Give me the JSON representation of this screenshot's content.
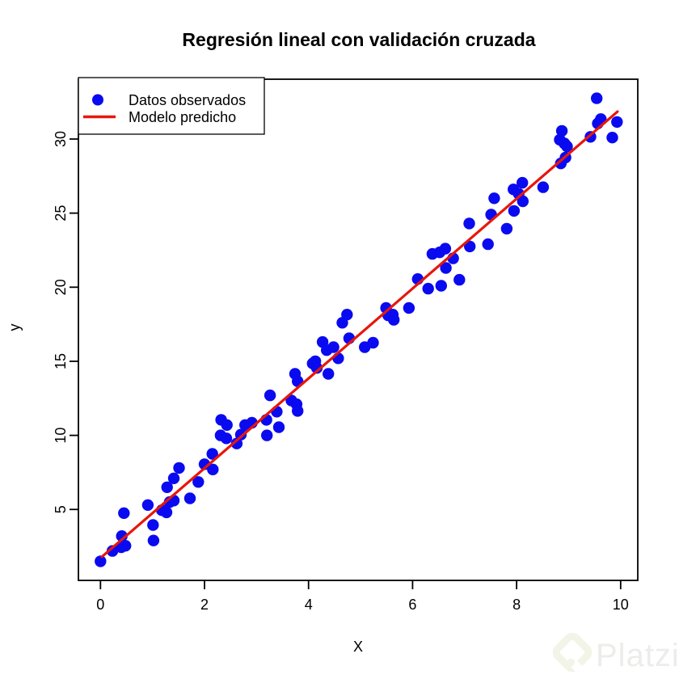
{
  "page": {
    "background": "#ffffff"
  },
  "chart_data": {
    "type": "scatter",
    "title": "Regresión lineal con validación cruzada",
    "xlabel": "X",
    "ylabel": "y",
    "x_ticks": [
      0,
      2,
      4,
      6,
      8,
      10
    ],
    "y_ticks": [
      5,
      10,
      15,
      20,
      25,
      30
    ],
    "xlim": [
      -0.4,
      10.35
    ],
    "ylim": [
      0.2,
      34.0
    ],
    "grid": false,
    "legend": {
      "position": "topleft",
      "entries": [
        {
          "label": "Datos observados",
          "marker": "filled-circle",
          "color": "#0a0af0"
        },
        {
          "label": "Modelo predicho",
          "marker": "line",
          "color": "#e8160c"
        }
      ]
    },
    "series": [
      {
        "name": "Datos observados",
        "type": "scatter",
        "color": "#0a0af0",
        "points": [
          [
            0,
            1.5
          ],
          [
            0.23,
            2.2
          ],
          [
            0.4,
            2.45
          ],
          [
            0.48,
            2.55
          ],
          [
            0.41,
            3.2
          ],
          [
            0.45,
            4.75
          ],
          [
            0.91,
            5.3
          ],
          [
            1.01,
            3.95
          ],
          [
            1.02,
            2.9
          ],
          [
            1.18,
            4.95
          ],
          [
            1.27,
            4.8
          ],
          [
            1.28,
            6.5
          ],
          [
            1.33,
            5.5
          ],
          [
            1.41,
            5.6
          ],
          [
            1.41,
            7.1
          ],
          [
            1.51,
            7.8
          ],
          [
            1.72,
            5.75
          ],
          [
            1.88,
            6.85
          ],
          [
            2,
            8.05
          ],
          [
            2.15,
            8.75
          ],
          [
            2.16,
            7.7
          ],
          [
            2.31,
            10
          ],
          [
            2.32,
            11.05
          ],
          [
            2.42,
            9.8
          ],
          [
            2.43,
            10.7
          ],
          [
            2.62,
            9.45
          ],
          [
            2.7,
            10.05
          ],
          [
            2.78,
            10.7
          ],
          [
            2.91,
            10.85
          ],
          [
            3.19,
            11.05
          ],
          [
            3.2,
            10
          ],
          [
            3.26,
            12.7
          ],
          [
            3.39,
            11.6
          ],
          [
            3.43,
            10.55
          ],
          [
            3.67,
            12.35
          ],
          [
            3.74,
            14.15
          ],
          [
            3.77,
            12.1
          ],
          [
            3.79,
            11.65
          ],
          [
            3.79,
            13.65
          ],
          [
            4.08,
            14.85
          ],
          [
            4.13,
            15
          ],
          [
            4.16,
            14.55
          ],
          [
            4.27,
            16.3
          ],
          [
            4.35,
            15.75
          ],
          [
            4.38,
            14.15
          ],
          [
            4.48,
            15.95
          ],
          [
            4.57,
            15.2
          ],
          [
            4.65,
            17.6
          ],
          [
            4.74,
            18.15
          ],
          [
            4.78,
            16.55
          ],
          [
            5.08,
            15.95
          ],
          [
            5.24,
            16.25
          ],
          [
            5.49,
            18.6
          ],
          [
            5.53,
            18.1
          ],
          [
            5.62,
            18.15
          ],
          [
            5.64,
            17.8
          ],
          [
            5.93,
            18.6
          ],
          [
            6.1,
            20.55
          ],
          [
            6.3,
            19.9
          ],
          [
            6.38,
            22.25
          ],
          [
            6.52,
            22.35
          ],
          [
            6.55,
            20.1
          ],
          [
            6.63,
            22.6
          ],
          [
            6.64,
            21.3
          ],
          [
            6.78,
            21.95
          ],
          [
            6.9,
            20.5
          ],
          [
            7.09,
            24.3
          ],
          [
            7.1,
            22.75
          ],
          [
            7.45,
            22.9
          ],
          [
            7.51,
            24.9
          ],
          [
            7.57,
            26
          ],
          [
            7.81,
            23.95
          ],
          [
            7.94,
            26.6
          ],
          [
            7.95,
            25.15
          ],
          [
            8.04,
            26.3
          ],
          [
            8.11,
            27.05
          ],
          [
            8.12,
            25.8
          ],
          [
            8.51,
            26.75
          ],
          [
            8.85,
            28.35
          ],
          [
            8.94,
            28.75
          ],
          [
            8.83,
            29.95
          ],
          [
            8.87,
            30.55
          ],
          [
            8.92,
            29.7
          ],
          [
            8.97,
            29.5
          ],
          [
            9.42,
            30.15
          ],
          [
            9.54,
            32.75
          ],
          [
            9.56,
            31.05
          ],
          [
            9.62,
            31.35
          ],
          [
            9.84,
            30.1
          ],
          [
            9.93,
            31.15
          ]
        ]
      },
      {
        "name": "Modelo predicho",
        "type": "line",
        "color": "#e8160c",
        "points": [
          [
            0.03,
            1.81
          ],
          [
            9.94,
            31.85
          ]
        ]
      }
    ]
  },
  "watermark": {
    "text": "Platzi",
    "logo": "platzi-diamond-icon",
    "logo_color": "#f2f4e7",
    "text_color": "#ececea"
  }
}
